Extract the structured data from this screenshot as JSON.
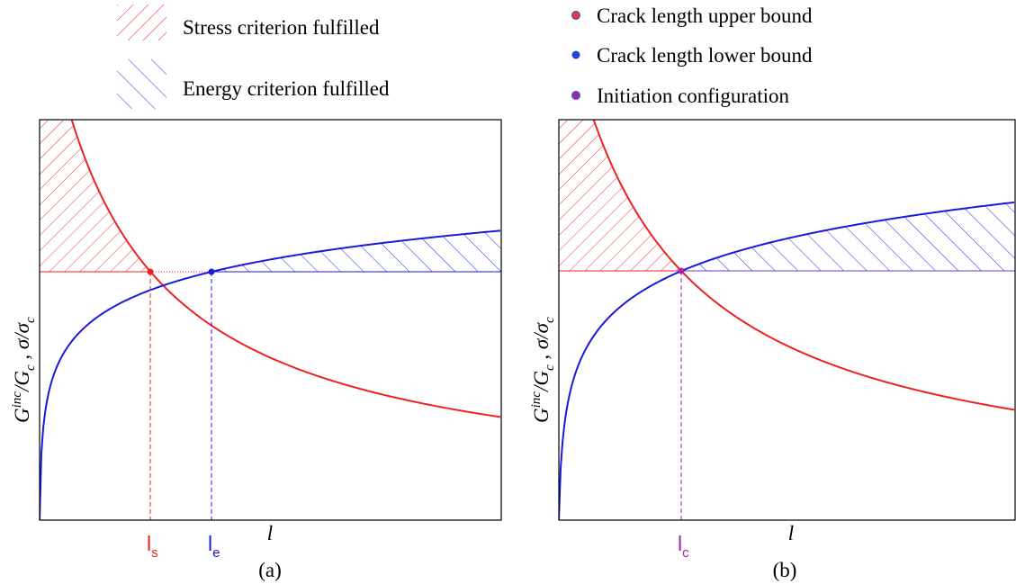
{
  "legend_hatch": [
    {
      "label": "Stress criterion fulfilled"
    },
    {
      "label": "Energy criterion fulfilled"
    }
  ],
  "legend_points": [
    {
      "label": "Crack length upper bound"
    },
    {
      "label": "Crack length lower bound"
    },
    {
      "label": "Initiation configuration"
    }
  ],
  "panels": [
    {
      "caption": "(a)",
      "x_label": "l",
      "y_label": [
        "G",
        "inc",
        "/G",
        "c",
        " , σ/σ",
        "c"
      ],
      "markers": [
        {
          "symbol": "l",
          "subscript": "s"
        },
        {
          "symbol": "l",
          "subscript": "e"
        }
      ]
    },
    {
      "caption": "(b)",
      "x_label": "l",
      "y_label": [
        "G",
        "inc",
        "/G",
        "c",
        " , σ/σ",
        "c"
      ],
      "markers": [
        {
          "symbol": "l",
          "subscript": "c"
        }
      ]
    }
  ]
}
